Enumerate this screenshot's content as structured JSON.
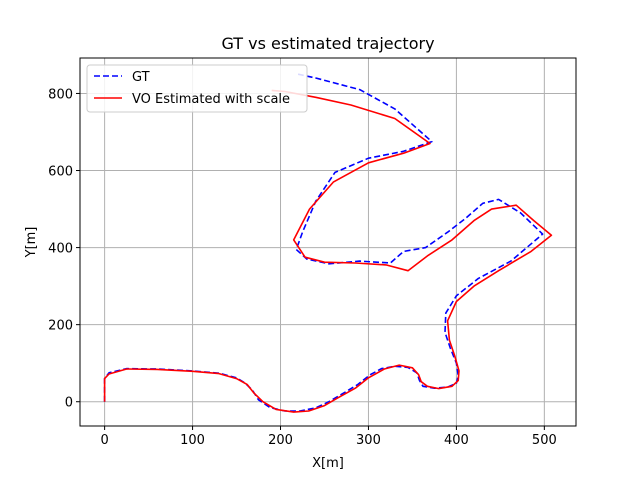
{
  "chart_data": {
    "type": "line",
    "title": "GT vs estimated trajectory",
    "xlabel": "X[m]",
    "ylabel": "Y[m]",
    "xlim": [
      -28,
      536
    ],
    "ylim": [
      -63,
      892
    ],
    "xticks": [
      0,
      100,
      200,
      300,
      400,
      500
    ],
    "yticks": [
      0,
      200,
      400,
      600,
      800
    ],
    "grid": true,
    "legend_position": "top-left",
    "series": [
      {
        "name": "GT",
        "color": "#0000ff",
        "dash": "dashed",
        "points": [
          [
            0,
            0
          ],
          [
            0,
            60
          ],
          [
            5,
            75
          ],
          [
            25,
            86
          ],
          [
            60,
            85
          ],
          [
            100,
            80
          ],
          [
            130,
            74
          ],
          [
            150,
            62
          ],
          [
            160,
            48
          ],
          [
            168,
            30
          ],
          [
            175,
            5
          ],
          [
            188,
            -15
          ],
          [
            205,
            -24
          ],
          [
            222,
            -24
          ],
          [
            240,
            -16
          ],
          [
            255,
            0
          ],
          [
            270,
            20
          ],
          [
            288,
            45
          ],
          [
            302,
            70
          ],
          [
            315,
            86
          ],
          [
            330,
            92
          ],
          [
            345,
            89
          ],
          [
            355,
            75
          ],
          [
            358,
            55
          ],
          [
            362,
            40
          ],
          [
            375,
            35
          ],
          [
            390,
            38
          ],
          [
            400,
            48
          ],
          [
            402,
            68
          ],
          [
            400,
            100
          ],
          [
            393,
            140
          ],
          [
            387,
            180
          ],
          [
            388,
            230
          ],
          [
            400,
            275
          ],
          [
            425,
            320
          ],
          [
            462,
            365
          ],
          [
            498,
            435
          ],
          [
            473,
            490
          ],
          [
            448,
            525
          ],
          [
            430,
            515
          ],
          [
            410,
            475
          ],
          [
            390,
            440
          ],
          [
            365,
            400
          ],
          [
            340,
            390
          ],
          [
            325,
            360
          ],
          [
            290,
            365
          ],
          [
            255,
            358
          ],
          [
            230,
            370
          ],
          [
            218,
            395
          ],
          [
            225,
            440
          ],
          [
            240,
            520
          ],
          [
            262,
            595
          ],
          [
            300,
            632
          ],
          [
            340,
            650
          ],
          [
            372,
            675
          ],
          [
            330,
            760
          ],
          [
            290,
            810
          ],
          [
            240,
            840
          ],
          [
            220,
            850
          ]
        ]
      },
      {
        "name": "VO Estimated with scale",
        "color": "#ff0000",
        "dash": "solid",
        "points": [
          [
            0,
            0
          ],
          [
            0,
            60
          ],
          [
            5,
            72
          ],
          [
            25,
            85
          ],
          [
            60,
            84
          ],
          [
            100,
            79
          ],
          [
            130,
            73
          ],
          [
            150,
            60
          ],
          [
            162,
            45
          ],
          [
            170,
            22
          ],
          [
            180,
            0
          ],
          [
            195,
            -20
          ],
          [
            215,
            -27
          ],
          [
            232,
            -24
          ],
          [
            250,
            -10
          ],
          [
            265,
            10
          ],
          [
            285,
            35
          ],
          [
            300,
            62
          ],
          [
            318,
            85
          ],
          [
            335,
            95
          ],
          [
            350,
            88
          ],
          [
            357,
            70
          ],
          [
            360,
            52
          ],
          [
            367,
            40
          ],
          [
            380,
            34
          ],
          [
            395,
            40
          ],
          [
            402,
            55
          ],
          [
            403,
            80
          ],
          [
            398,
            120
          ],
          [
            392,
            160
          ],
          [
            390,
            210
          ],
          [
            400,
            260
          ],
          [
            420,
            300
          ],
          [
            448,
            340
          ],
          [
            485,
            390
          ],
          [
            508,
            432
          ],
          [
            488,
            470
          ],
          [
            468,
            510
          ],
          [
            440,
            500
          ],
          [
            420,
            470
          ],
          [
            395,
            420
          ],
          [
            368,
            380
          ],
          [
            345,
            340
          ],
          [
            320,
            355
          ],
          [
            285,
            360
          ],
          [
            250,
            362
          ],
          [
            228,
            375
          ],
          [
            215,
            420
          ],
          [
            233,
            500
          ],
          [
            260,
            570
          ],
          [
            300,
            620
          ],
          [
            340,
            645
          ],
          [
            370,
            670
          ],
          [
            330,
            735
          ],
          [
            280,
            770
          ],
          [
            240,
            790
          ],
          [
            205,
            805
          ],
          [
            190,
            808
          ]
        ]
      }
    ]
  }
}
